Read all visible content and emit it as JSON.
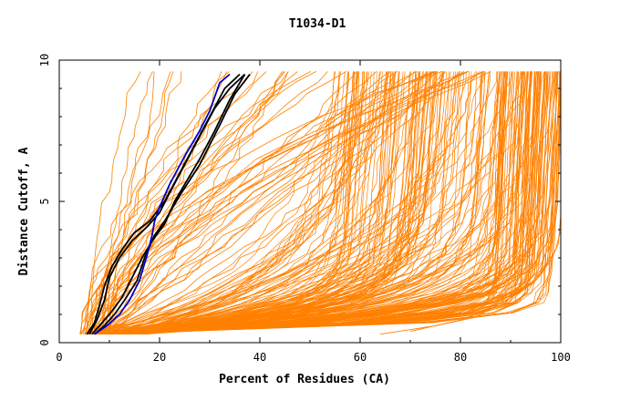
{
  "chart_data": {
    "type": "line",
    "title": "T1034-D1",
    "xlabel": "Percent of Residues (CA)",
    "ylabel": "Distance Cutoff, A",
    "xlim": [
      0,
      100
    ],
    "ylim": [
      0,
      10
    ],
    "xticks": [
      0,
      20,
      40,
      60,
      80,
      100
    ],
    "yticks": [
      0,
      5,
      10
    ],
    "grid": false,
    "colors": {
      "orange": "#ff8000",
      "black": "#000000",
      "blue": "#0000cc"
    },
    "highlight_series": [
      {
        "color": "#000000",
        "points": [
          [
            5.5,
            0.3
          ],
          [
            7,
            0.7
          ],
          [
            8,
            1.3
          ],
          [
            9,
            2
          ],
          [
            10.5,
            2.7
          ],
          [
            12.5,
            3.3
          ],
          [
            15,
            3.9
          ],
          [
            18,
            4.3
          ],
          [
            21,
            5
          ],
          [
            24,
            6
          ],
          [
            27,
            7
          ],
          [
            30,
            8
          ],
          [
            33,
            9
          ],
          [
            36,
            9.5
          ]
        ]
      },
      {
        "color": "#000000",
        "points": [
          [
            6,
            0.3
          ],
          [
            7.5,
            0.8
          ],
          [
            9,
            1.5
          ],
          [
            10,
            2.3
          ],
          [
            12,
            3
          ],
          [
            14.5,
            3.6
          ],
          [
            17.5,
            4.1
          ],
          [
            20,
            4.6
          ],
          [
            22,
            5.3
          ],
          [
            25,
            6.3
          ],
          [
            28,
            7.3
          ],
          [
            31,
            8.3
          ],
          [
            34,
            9
          ],
          [
            37,
            9.5
          ]
        ]
      },
      {
        "color": "#000000",
        "points": [
          [
            6.5,
            0.3
          ],
          [
            8,
            0.6
          ],
          [
            10,
            1
          ],
          [
            12.5,
            1.6
          ],
          [
            14.5,
            2.3
          ],
          [
            16.5,
            3
          ],
          [
            18.5,
            3.6
          ],
          [
            21,
            4.2
          ],
          [
            23,
            5
          ],
          [
            25,
            5.6
          ],
          [
            28,
            6.5
          ],
          [
            31,
            7.5
          ],
          [
            34,
            8.6
          ],
          [
            37,
            9.5
          ]
        ]
      },
      {
        "color": "#000000",
        "points": [
          [
            7,
            0.3
          ],
          [
            9,
            0.6
          ],
          [
            11,
            1
          ],
          [
            13,
            1.5
          ],
          [
            15.5,
            2.2
          ],
          [
            17,
            3
          ],
          [
            19,
            3.8
          ],
          [
            21,
            4.3
          ],
          [
            24,
            5.2
          ],
          [
            28,
            6.3
          ],
          [
            32,
            7.7
          ],
          [
            35,
            8.8
          ],
          [
            38,
            9.5
          ]
        ]
      },
      {
        "color": "#0000cc",
        "points": [
          [
            7,
            0.3
          ],
          [
            9.5,
            0.6
          ],
          [
            12,
            1
          ],
          [
            14,
            1.5
          ],
          [
            16,
            2.2
          ],
          [
            17.5,
            3.1
          ],
          [
            18.5,
            3.8
          ],
          [
            19,
            4.3
          ],
          [
            20,
            4.8
          ],
          [
            22,
            5.6
          ],
          [
            25,
            6.6
          ],
          [
            28,
            7.5
          ],
          [
            30,
            8.2
          ],
          [
            32,
            9.2
          ],
          [
            34,
            9.5
          ]
        ]
      }
    ]
  }
}
